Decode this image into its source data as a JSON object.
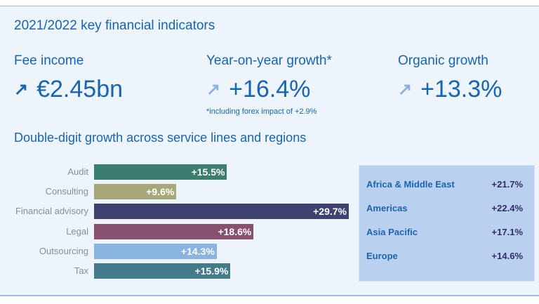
{
  "title": "2021/2022 key financial indicators",
  "kpis": [
    {
      "label": "Fee income",
      "value": "€2.45bn",
      "icon": "arrow-up-right-icon",
      "icon_color": "#1565b0"
    },
    {
      "label": "Year-on-year growth*",
      "value": "+16.4%",
      "icon": "arrow-up-right-icon",
      "icon_color": "#8ab4e0",
      "footnote": "*including forex impact of +2.9%"
    },
    {
      "label": "Organic growth",
      "value": "+13.3%",
      "icon": "arrow-up-right-icon",
      "icon_color": "#8ab4e0"
    }
  ],
  "subtitle": "Double-digit growth across service lines and regions",
  "chart_data": {
    "type": "bar",
    "orientation": "horizontal",
    "title": "Double-digit growth across service lines and regions",
    "categories": [
      "Audit",
      "Consulting",
      "Financial advisory",
      "Legal",
      "Outsourcing",
      "Tax"
    ],
    "values": [
      15.5,
      9.6,
      29.7,
      18.6,
      14.3,
      15.9
    ],
    "labels": [
      "+15.5%",
      "+9.6%",
      "+29.7%",
      "+18.6%",
      "+14.3%",
      "+15.9%"
    ],
    "colors": [
      "#3b7d6e",
      "#a6a87a",
      "#3f416f",
      "#87506f",
      "#8ab4e0",
      "#437b8a"
    ],
    "unit": "%",
    "xlim": [
      0,
      29.7
    ]
  },
  "regions": [
    {
      "name": "Africa & Middle East",
      "value": "+21.7%"
    },
    {
      "name": "Americas",
      "value": "+22.4%"
    },
    {
      "name": "Asia Pacific",
      "value": "+17.1%"
    },
    {
      "name": "Europe",
      "value": "+14.6%"
    }
  ]
}
